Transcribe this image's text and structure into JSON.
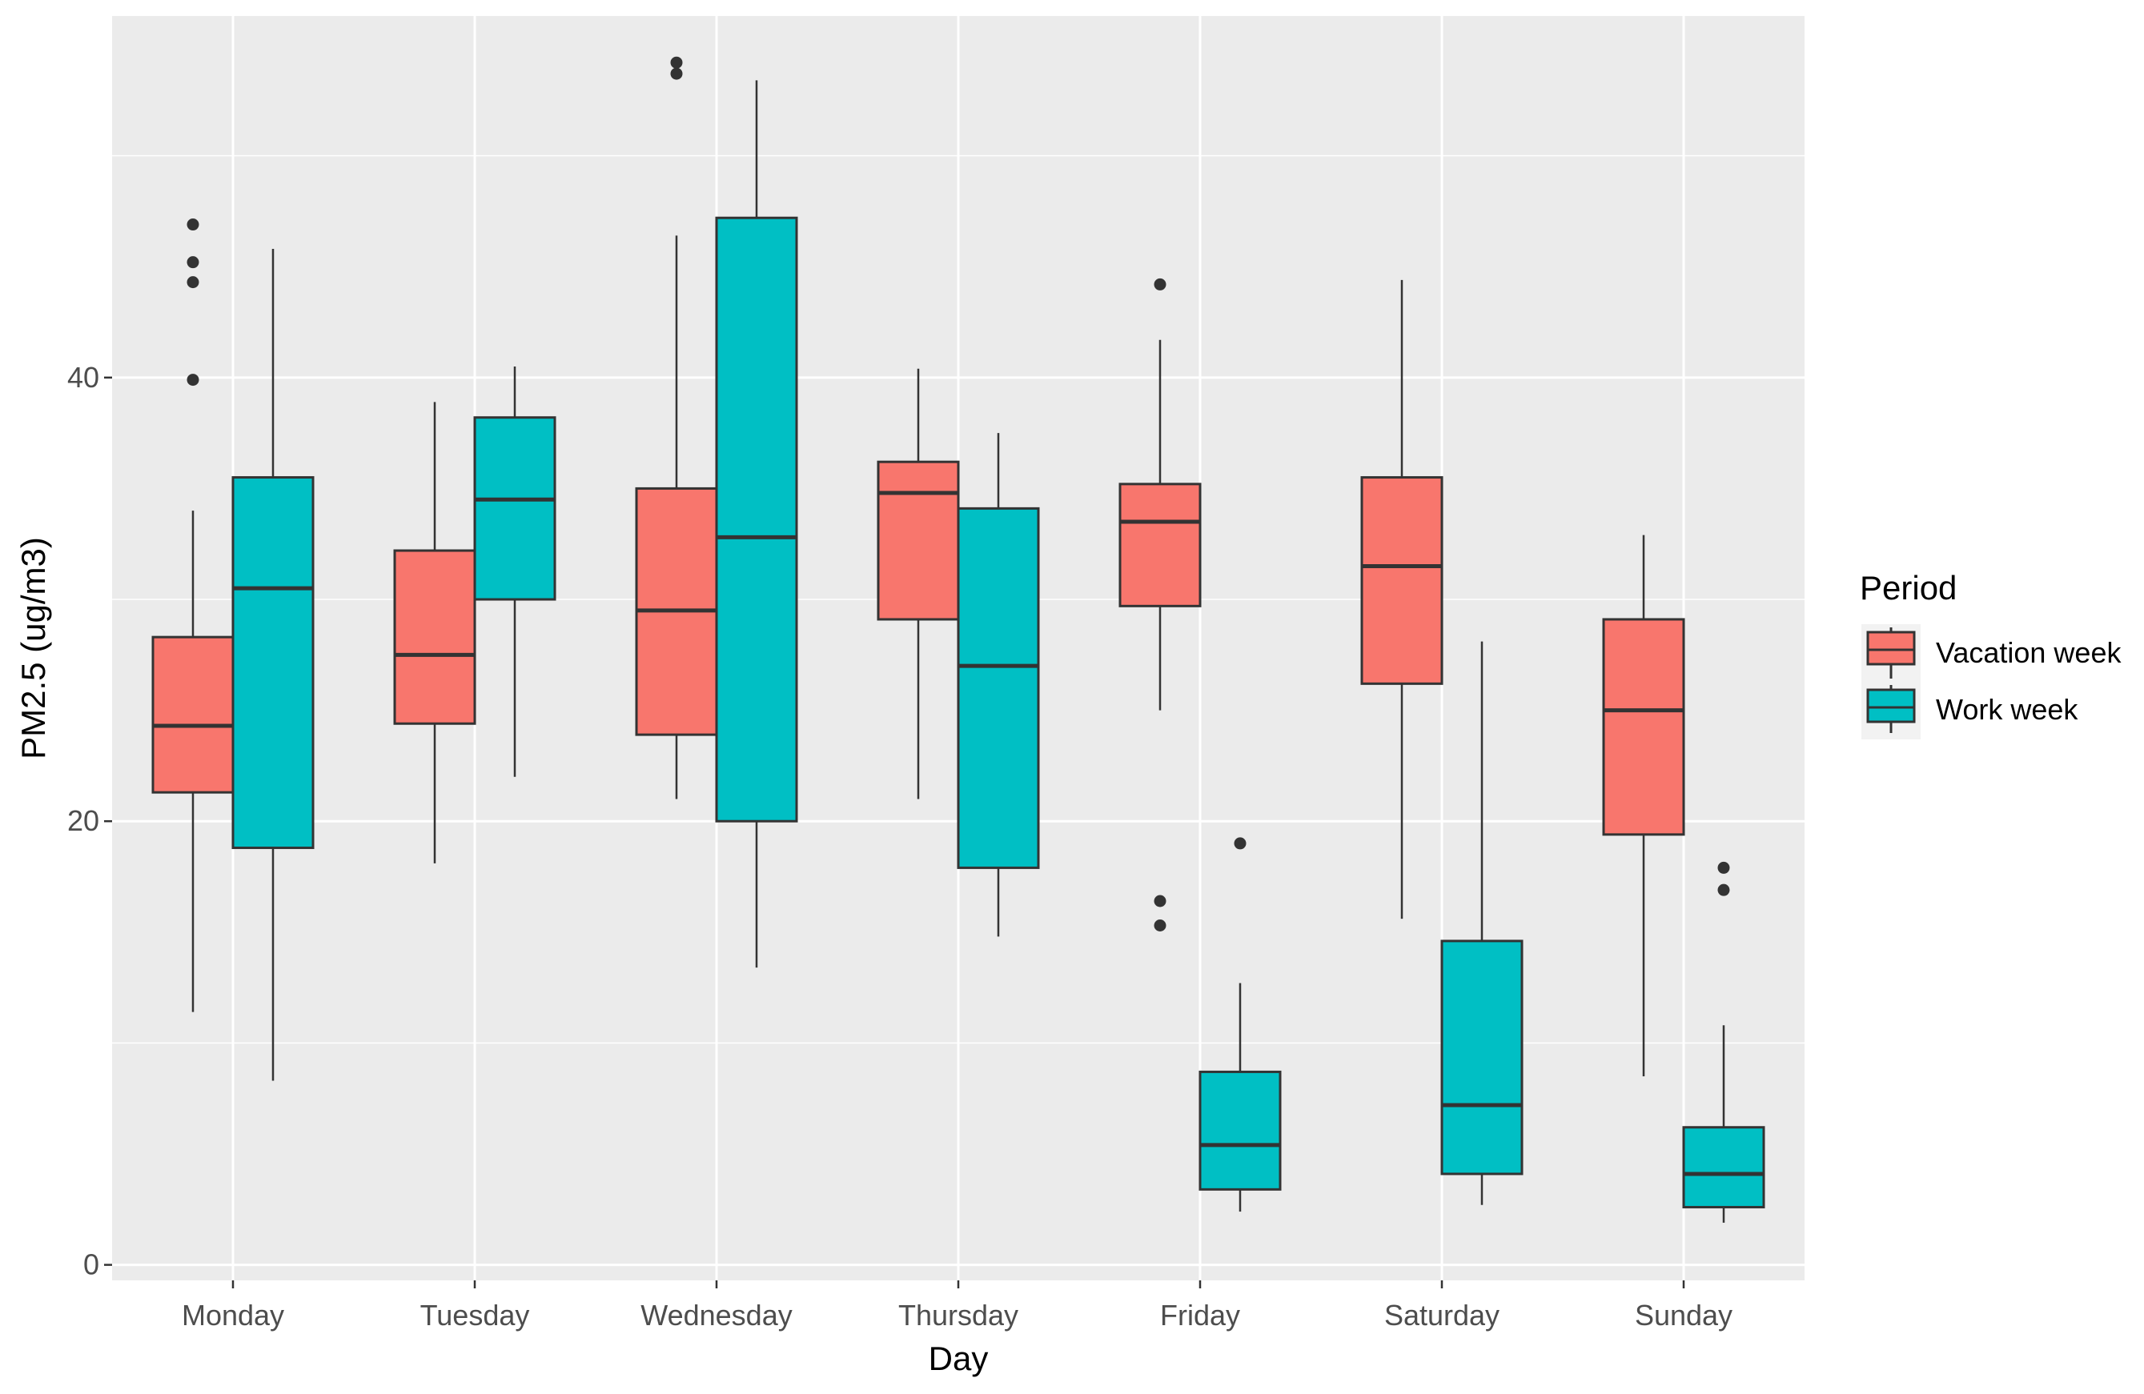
{
  "chart_data": {
    "type": "boxplot",
    "title": "",
    "xlabel": "Day",
    "ylabel": "PM2.5 (ug/m3)",
    "ylim": [
      -0.7,
      56.3
    ],
    "yticks": [
      0,
      20,
      40
    ],
    "grid": true,
    "legend": {
      "title": "Period",
      "placement": "right"
    },
    "categories": [
      "Monday",
      "Tuesday",
      "Wednesday",
      "Thursday",
      "Friday",
      "Saturday",
      "Sunday"
    ],
    "series": [
      {
        "name": "Vacation week",
        "color": "#F8766D",
        "boxes": [
          {
            "lower": 11.4,
            "q1": 21.3,
            "median": 24.3,
            "q3": 28.3,
            "upper": 34.0,
            "outliers": [
              39.9,
              44.3,
              45.2,
              46.9
            ]
          },
          {
            "lower": 18.1,
            "q1": 24.4,
            "median": 27.5,
            "q3": 32.2,
            "upper": 38.9,
            "outliers": []
          },
          {
            "lower": 21.0,
            "q1": 23.9,
            "median": 29.5,
            "q3": 35.0,
            "upper": 46.4,
            "outliers": [
              53.7,
              54.2
            ]
          },
          {
            "lower": 21.0,
            "q1": 29.1,
            "median": 34.8,
            "q3": 36.2,
            "upper": 40.4,
            "outliers": []
          },
          {
            "lower": 25.0,
            "q1": 29.7,
            "median": 33.5,
            "q3": 35.2,
            "upper": 41.7,
            "outliers": [
              15.3,
              16.4,
              44.2
            ]
          },
          {
            "lower": 15.6,
            "q1": 26.2,
            "median": 31.5,
            "q3": 35.5,
            "upper": 44.4,
            "outliers": []
          },
          {
            "lower": 8.5,
            "q1": 19.4,
            "median": 25.0,
            "q3": 29.1,
            "upper": 32.9,
            "outliers": []
          }
        ]
      },
      {
        "name": "Work week",
        "color": "#00BFC4",
        "boxes": [
          {
            "lower": 8.3,
            "q1": 18.8,
            "median": 30.5,
            "q3": 35.5,
            "upper": 45.8,
            "outliers": []
          },
          {
            "lower": 22.0,
            "q1": 30.0,
            "median": 34.5,
            "q3": 38.2,
            "upper": 40.5,
            "outliers": []
          },
          {
            "lower": 13.4,
            "q1": 20.0,
            "median": 32.8,
            "q3": 47.2,
            "upper": 53.4,
            "outliers": []
          },
          {
            "lower": 14.8,
            "q1": 17.9,
            "median": 27.0,
            "q3": 34.1,
            "upper": 37.5,
            "outliers": []
          },
          {
            "lower": 2.4,
            "q1": 3.4,
            "median": 5.4,
            "q3": 8.7,
            "upper": 12.7,
            "outliers": [
              19.0
            ]
          },
          {
            "lower": 2.7,
            "q1": 4.1,
            "median": 7.2,
            "q3": 14.6,
            "upper": 28.1,
            "outliers": []
          },
          {
            "lower": 1.9,
            "q1": 2.6,
            "median": 4.1,
            "q3": 6.2,
            "upper": 10.8,
            "outliers": [
              16.9,
              17.9
            ]
          }
        ]
      }
    ]
  }
}
